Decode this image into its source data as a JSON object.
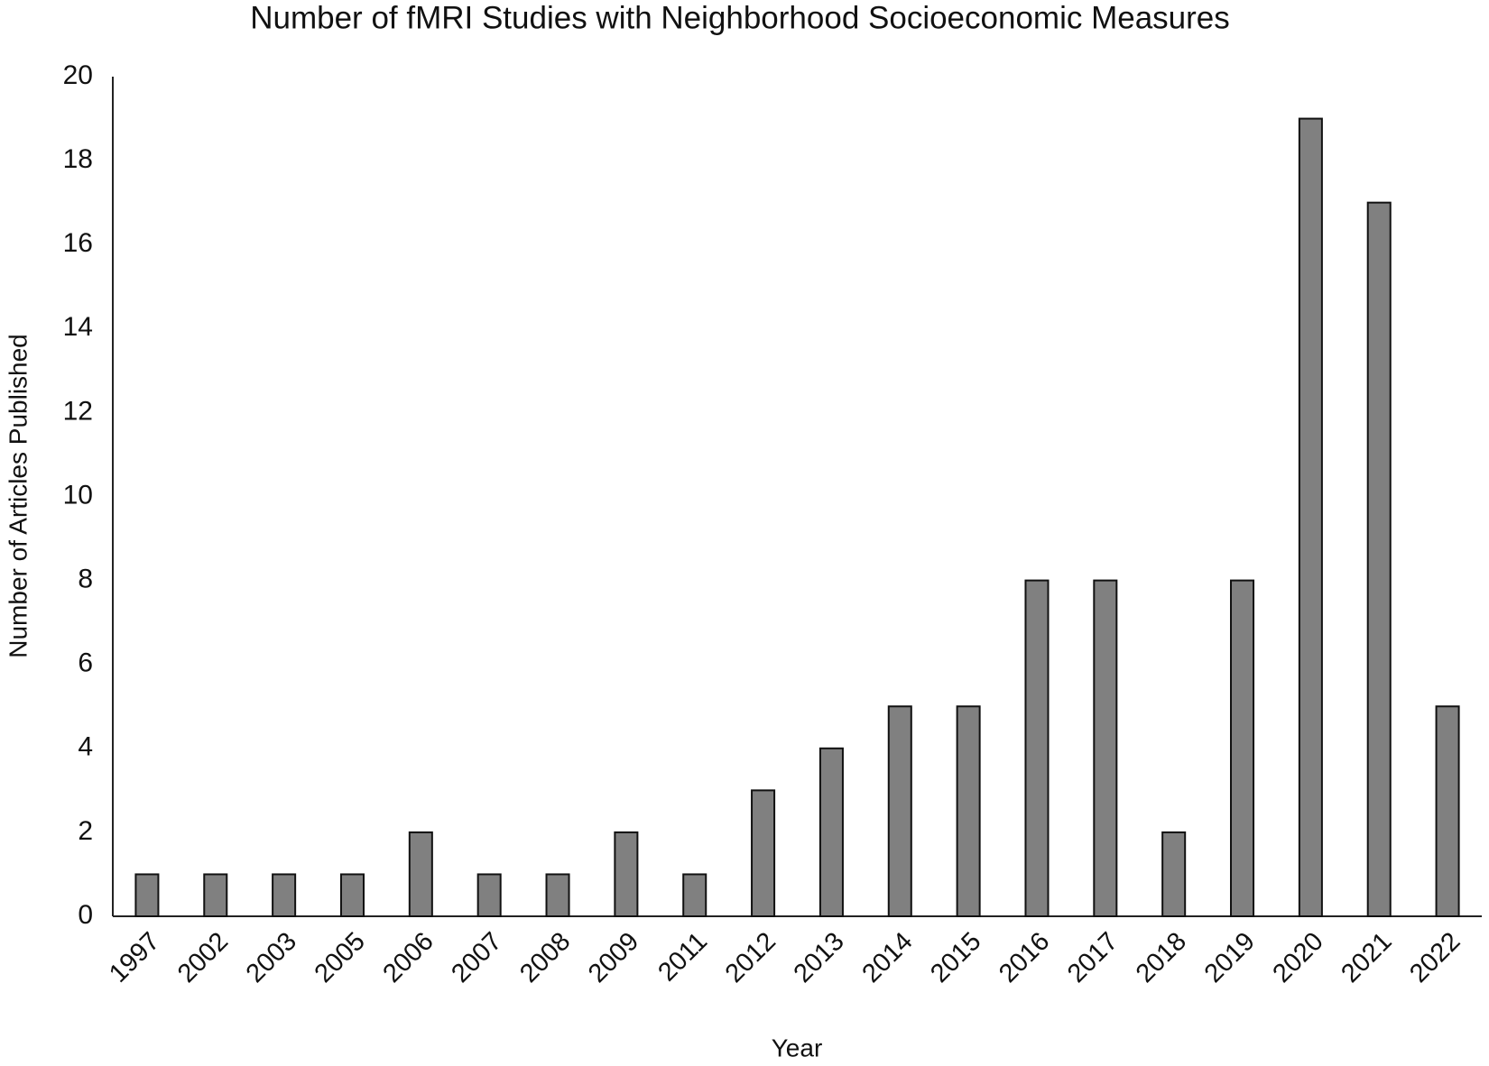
{
  "chart_data": {
    "type": "bar",
    "title": "Number of fMRI Studies with Neighborhood Socioeconomic Measures",
    "x_label": "Year",
    "y_label": "Number of Articles Published",
    "categories": [
      "1997",
      "2002",
      "2003",
      "2005",
      "2006",
      "2007",
      "2008",
      "2009",
      "2011",
      "2012",
      "2013",
      "2014",
      "2015",
      "2016",
      "2017",
      "2018",
      "2019",
      "2020",
      "2021",
      "2022"
    ],
    "values": [
      1,
      1,
      1,
      1,
      2,
      1,
      1,
      2,
      1,
      3,
      4,
      5,
      5,
      8,
      8,
      2,
      8,
      19,
      17,
      5
    ],
    "color": "#808080",
    "ylim": [
      0,
      20
    ],
    "yticks": [
      0,
      2,
      4,
      6,
      8,
      10,
      12,
      14,
      16,
      18,
      20
    ],
    "grid": false
  }
}
